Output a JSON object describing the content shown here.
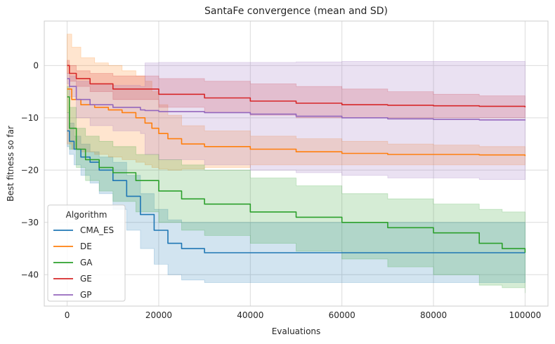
{
  "chart_data": {
    "type": "line",
    "title": "SantaFe convergence (mean and SD)",
    "xlabel": "Evaluations",
    "ylabel": "Best fitness so far",
    "xlim": [
      -5000,
      105000
    ],
    "ylim": [
      -46,
      8.5
    ],
    "xticks": [
      0,
      20000,
      40000,
      60000,
      80000,
      100000
    ],
    "yticks": [
      0,
      -10,
      -20,
      -30,
      -40
    ],
    "xtick_labels": [
      "0",
      "20000",
      "40000",
      "60000",
      "80000",
      "100000"
    ],
    "ytick_labels": [
      "0",
      "−10",
      "−20",
      "−30",
      "−40"
    ],
    "grid": true,
    "legend": {
      "title": "Algorithm",
      "placement": "lower-left"
    },
    "series": [
      {
        "name": "CMA_ES",
        "color": "#1f77b4",
        "x": [
          0,
          500,
          1500,
          3000,
          5000,
          7000,
          10000,
          13000,
          16000,
          19000,
          22000,
          25000,
          30000,
          40000,
          60000,
          80000,
          100000
        ],
        "mean": [
          -12.5,
          -14.5,
          -16.0,
          -17.5,
          -18.5,
          -20.0,
          -22.0,
          -25.0,
          -28.5,
          -31.5,
          -34.0,
          -35.0,
          -35.8,
          -35.8,
          -35.8,
          -35.8,
          -35.8
        ],
        "upper": [
          -9.0,
          -11.0,
          -13.5,
          -15.0,
          -16.5,
          -17.5,
          -18.5,
          -21.0,
          -24.5,
          -27.5,
          -29.5,
          -30.0,
          -30.0,
          -30.0,
          -30.0,
          -30.0,
          -30.0
        ],
        "lower": [
          -15.5,
          -17.0,
          -19.0,
          -21.0,
          -22.5,
          -24.5,
          -27.5,
          -31.5,
          -35.0,
          -38.0,
          -40.0,
          -41.0,
          -41.5,
          -41.5,
          -41.5,
          -41.5,
          -41.5
        ]
      },
      {
        "name": "DE",
        "color": "#ff7f0e",
        "x": [
          0,
          1000,
          3000,
          6000,
          9000,
          12000,
          15000,
          17000,
          18500,
          20000,
          22000,
          25000,
          30000,
          40000,
          50000,
          60000,
          70000,
          80000,
          90000,
          100000
        ],
        "mean": [
          -4.5,
          -6.5,
          -7.5,
          -8.0,
          -8.5,
          -9.0,
          -10.0,
          -11.0,
          -12.0,
          -13.0,
          -14.0,
          -15.0,
          -15.5,
          -16.0,
          -16.5,
          -16.8,
          -17.0,
          -17.0,
          -17.1,
          -17.3
        ],
        "upper": [
          6.0,
          3.5,
          1.5,
          0.5,
          0.0,
          -1.0,
          -2.0,
          -3.0,
          -5.0,
          -7.5,
          -9.5,
          -11.5,
          -12.5,
          -13.5,
          -14.0,
          -14.5,
          -15.0,
          -15.2,
          -15.5,
          -15.5
        ],
        "lower": [
          -15.0,
          -16.0,
          -16.5,
          -17.0,
          -17.5,
          -18.0,
          -18.5,
          -19.0,
          -19.5,
          -19.8,
          -20.0,
          -19.8,
          -19.5,
          -19.0,
          -19.0,
          -19.0,
          -19.0,
          -19.0,
          -19.0,
          -19.0
        ]
      },
      {
        "name": "GA",
        "color": "#2ca02c",
        "x": [
          0,
          500,
          2000,
          4000,
          7000,
          10000,
          15000,
          20000,
          25000,
          30000,
          40000,
          50000,
          60000,
          70000,
          80000,
          90000,
          95000,
          100000
        ],
        "mean": [
          -6.0,
          -12.0,
          -16.0,
          -18.0,
          -19.5,
          -20.5,
          -22.0,
          -24.0,
          -25.5,
          -26.5,
          -28.0,
          -29.0,
          -30.0,
          -31.0,
          -32.0,
          -34.0,
          -35.0,
          -35.8
        ],
        "upper": [
          -4.0,
          -8.0,
          -12.0,
          -13.5,
          -14.5,
          -15.5,
          -17.0,
          -18.0,
          -19.0,
          -20.0,
          -21.5,
          -23.0,
          -24.5,
          -25.5,
          -26.5,
          -27.5,
          -28.0,
          -28.0
        ],
        "lower": [
          -9.0,
          -16.0,
          -19.5,
          -22.0,
          -24.0,
          -26.0,
          -28.0,
          -30.0,
          -31.5,
          -32.5,
          -34.0,
          -35.5,
          -37.0,
          -38.5,
          -40.0,
          -42.0,
          -42.5,
          -43.5
        ]
      },
      {
        "name": "GE",
        "color": "#d62728",
        "x": [
          0,
          500,
          2000,
          5000,
          10000,
          20000,
          30000,
          40000,
          50000,
          60000,
          70000,
          80000,
          90000,
          100000
        ],
        "mean": [
          0.0,
          -1.5,
          -2.5,
          -3.5,
          -4.5,
          -5.5,
          -6.2,
          -6.8,
          -7.2,
          -7.5,
          -7.6,
          -7.7,
          -7.8,
          -8.0
        ],
        "upper": [
          1.0,
          0.0,
          -1.0,
          -1.5,
          -2.0,
          -2.5,
          -3.0,
          -3.5,
          -4.0,
          -4.5,
          -5.0,
          -5.5,
          -5.8,
          -6.0
        ],
        "lower": [
          -1.5,
          -3.0,
          -4.0,
          -5.0,
          -6.5,
          -8.0,
          -9.0,
          -9.5,
          -10.0,
          -10.0,
          -10.0,
          -10.0,
          -10.0,
          -10.0
        ]
      },
      {
        "name": "GP",
        "color": "#9467bd",
        "x": [
          0,
          500,
          2000,
          5000,
          10000,
          16000,
          17000,
          20000,
          30000,
          40000,
          50000,
          60000,
          70000,
          80000,
          90000,
          100000
        ],
        "mean": [
          -2.5,
          -4.0,
          -6.5,
          -7.5,
          -8.0,
          -8.5,
          -8.6,
          -8.8,
          -9.0,
          -9.3,
          -9.7,
          -10.0,
          -10.2,
          -10.3,
          -10.4,
          -10.5
        ],
        "upper": [
          -1.5,
          -2.0,
          -3.0,
          -3.5,
          -3.8,
          -4.0,
          0.5,
          0.6,
          0.6,
          0.6,
          0.7,
          0.8,
          0.8,
          0.8,
          0.8,
          0.8
        ],
        "lower": [
          -3.5,
          -6.0,
          -10.0,
          -11.5,
          -12.5,
          -13.0,
          -17.0,
          -18.0,
          -19.0,
          -20.0,
          -20.5,
          -21.0,
          -21.5,
          -21.5,
          -21.8,
          -21.8
        ]
      }
    ]
  }
}
